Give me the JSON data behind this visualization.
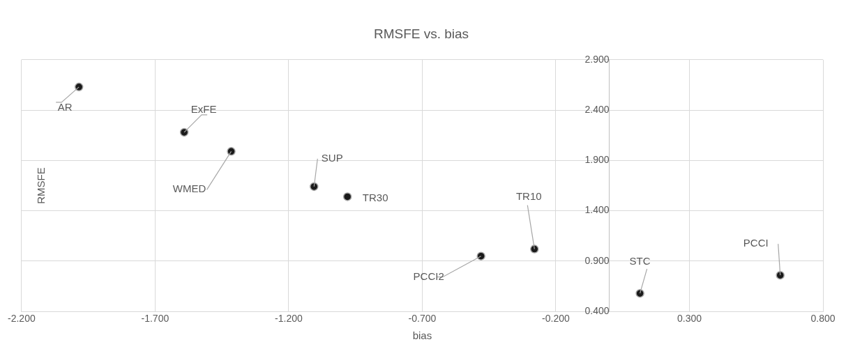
{
  "chart_data": {
    "type": "scatter",
    "title": "RMSFE vs. bias",
    "xlabel": "bias",
    "ylabel": "RMSFE",
    "x": [
      -1.985,
      -1.591,
      -1.415,
      -1.105,
      -0.98,
      -0.48,
      -0.28,
      0.115,
      0.64
    ],
    "values": [
      2.63,
      2.18,
      1.99,
      1.64,
      1.54,
      0.95,
      1.02,
      0.58,
      0.76
    ],
    "color": "#1a1a1a",
    "marker": "circle",
    "grid": true,
    "legend": false,
    "xlim": [
      -2.2,
      0.8
    ],
    "ylim": [
      0.4,
      2.9
    ],
    "xticks": [
      {
        "value": -2.2,
        "label": "-2.200"
      },
      {
        "value": -1.7,
        "label": "-1.700"
      },
      {
        "value": -1.2,
        "label": "-1.200"
      },
      {
        "value": -0.7,
        "label": "-0.700"
      },
      {
        "value": -0.2,
        "label": "-0.200"
      },
      {
        "value": 0.3,
        "label": "0.300"
      },
      {
        "value": 0.8,
        "label": "0.800"
      }
    ],
    "yticks": [
      {
        "value": 0.4,
        "label": "0.400"
      },
      {
        "value": 0.9,
        "label": "0.900"
      },
      {
        "value": 1.4,
        "label": "1.400"
      },
      {
        "value": 1.9,
        "label": "1.900"
      },
      {
        "value": 2.4,
        "label": "2.400"
      },
      {
        "value": 2.9,
        "label": "2.900"
      }
    ],
    "annotations": [
      {
        "text": "AR",
        "x": -1.985,
        "y": 2.63
      },
      {
        "text": "ExFE",
        "x": -1.591,
        "y": 2.18
      },
      {
        "text": "WMED",
        "x": -1.415,
        "y": 1.99
      },
      {
        "text": "SUP",
        "x": -1.105,
        "y": 1.64
      },
      {
        "text": "TR30",
        "x": -0.98,
        "y": 1.54
      },
      {
        "text": "PCCI2",
        "x": -0.48,
        "y": 0.95
      },
      {
        "text": "TR10",
        "x": -0.28,
        "y": 1.02
      },
      {
        "text": "STC",
        "x": 0.115,
        "y": 0.58
      },
      {
        "text": "PCCI",
        "x": 0.64,
        "y": 0.76
      }
    ]
  }
}
